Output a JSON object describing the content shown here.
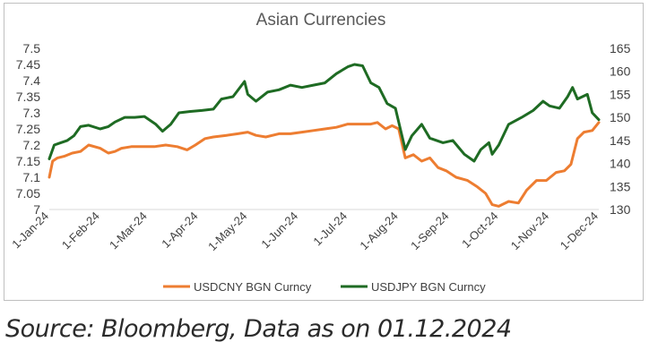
{
  "source_note": "Source: Bloomberg, Data as on 01.12.2024",
  "colors": {
    "usdcny": "#ed7d31",
    "usdjpy": "#1e6b23",
    "axis_text": "#404040",
    "title": "#595959",
    "frame": "#bfbfbf"
  },
  "chart_data": {
    "type": "line",
    "title": "Asian Currencies",
    "xlabel": "",
    "ylabel": "",
    "x_tick_labels": [
      "1-Jan-24",
      "1-Feb-24",
      "1-Mar-24",
      "1-Apr-24",
      "1-May-24",
      "1-Jun-24",
      "1-Jul-24",
      "1-Aug-24",
      "1-Sep-24",
      "1-Oct-24",
      "1-Nov-24",
      "1-Dec-24"
    ],
    "x_range": [
      "2024-01-01",
      "2024-12-01"
    ],
    "y_left": {
      "min": 7.0,
      "max": 7.5,
      "ticks": [
        "7",
        "7.05",
        "7.1",
        "7.15",
        "7.2",
        "7.25",
        "7.3",
        "7.35",
        "7.4",
        "7.45",
        "7.5"
      ]
    },
    "y_right": {
      "min": 130,
      "max": 165,
      "ticks": [
        "130",
        "135",
        "140",
        "145",
        "150",
        "155",
        "160",
        "165"
      ]
    },
    "grid": false,
    "legend_position": "bottom",
    "series": [
      {
        "name": "USDCNY BGN Curncy",
        "axis": "left",
        "points": [
          [
            "2024-01-01",
            7.1
          ],
          [
            "2024-01-03",
            7.15
          ],
          [
            "2024-01-06",
            7.16
          ],
          [
            "2024-01-10",
            7.165
          ],
          [
            "2024-01-15",
            7.175
          ],
          [
            "2024-01-20",
            7.18
          ],
          [
            "2024-01-25",
            7.2
          ],
          [
            "2024-02-01",
            7.19
          ],
          [
            "2024-02-06",
            7.175
          ],
          [
            "2024-02-10",
            7.18
          ],
          [
            "2024-02-14",
            7.19
          ],
          [
            "2024-02-20",
            7.195
          ],
          [
            "2024-02-27",
            7.195
          ],
          [
            "2024-03-05",
            7.195
          ],
          [
            "2024-03-12",
            7.2
          ],
          [
            "2024-03-19",
            7.195
          ],
          [
            "2024-03-25",
            7.185
          ],
          [
            "2024-03-30",
            7.2
          ],
          [
            "2024-04-05",
            7.22
          ],
          [
            "2024-04-10",
            7.225
          ],
          [
            "2024-04-18",
            7.23
          ],
          [
            "2024-04-25",
            7.235
          ],
          [
            "2024-05-01",
            7.24
          ],
          [
            "2024-05-06",
            7.23
          ],
          [
            "2024-05-12",
            7.225
          ],
          [
            "2024-05-20",
            7.235
          ],
          [
            "2024-05-27",
            7.235
          ],
          [
            "2024-06-03",
            7.24
          ],
          [
            "2024-06-10",
            7.245
          ],
          [
            "2024-06-17",
            7.25
          ],
          [
            "2024-06-24",
            7.255
          ],
          [
            "2024-07-01",
            7.265
          ],
          [
            "2024-07-08",
            7.265
          ],
          [
            "2024-07-15",
            7.265
          ],
          [
            "2024-07-19",
            7.27
          ],
          [
            "2024-07-24",
            7.25
          ],
          [
            "2024-07-28",
            7.26
          ],
          [
            "2024-08-01",
            7.25
          ],
          [
            "2024-08-05",
            7.16
          ],
          [
            "2024-08-10",
            7.17
          ],
          [
            "2024-08-15",
            7.15
          ],
          [
            "2024-08-20",
            7.16
          ],
          [
            "2024-08-25",
            7.13
          ],
          [
            "2024-08-30",
            7.12
          ],
          [
            "2024-09-05",
            7.1
          ],
          [
            "2024-09-12",
            7.09
          ],
          [
            "2024-09-18",
            7.07
          ],
          [
            "2024-09-23",
            7.05
          ],
          [
            "2024-09-27",
            7.015
          ],
          [
            "2024-10-01",
            7.01
          ],
          [
            "2024-10-07",
            7.025
          ],
          [
            "2024-10-13",
            7.02
          ],
          [
            "2024-10-18",
            7.06
          ],
          [
            "2024-10-24",
            7.09
          ],
          [
            "2024-10-30",
            7.09
          ],
          [
            "2024-11-05",
            7.115
          ],
          [
            "2024-11-10",
            7.12
          ],
          [
            "2024-11-14",
            7.14
          ],
          [
            "2024-11-18",
            7.22
          ],
          [
            "2024-11-22",
            7.24
          ],
          [
            "2024-11-27",
            7.245
          ],
          [
            "2024-12-01",
            7.27
          ]
        ]
      },
      {
        "name": "USDJPY BGN Curncy",
        "axis": "right",
        "points": [
          [
            "2024-01-01",
            141
          ],
          [
            "2024-01-04",
            144
          ],
          [
            "2024-01-08",
            144.5
          ],
          [
            "2024-01-12",
            145
          ],
          [
            "2024-01-16",
            146
          ],
          [
            "2024-01-20",
            148
          ],
          [
            "2024-01-25",
            148.3
          ],
          [
            "2024-02-01",
            147.5
          ],
          [
            "2024-02-06",
            148
          ],
          [
            "2024-02-10",
            149
          ],
          [
            "2024-02-16",
            150
          ],
          [
            "2024-02-22",
            150
          ],
          [
            "2024-02-28",
            150.2
          ],
          [
            "2024-03-06",
            148.5
          ],
          [
            "2024-03-10",
            147
          ],
          [
            "2024-03-15",
            148.5
          ],
          [
            "2024-03-20",
            151
          ],
          [
            "2024-03-27",
            151.3
          ],
          [
            "2024-04-03",
            151.5
          ],
          [
            "2024-04-10",
            151.8
          ],
          [
            "2024-04-15",
            154
          ],
          [
            "2024-04-22",
            154.5
          ],
          [
            "2024-04-29",
            157.8
          ],
          [
            "2024-05-01",
            155
          ],
          [
            "2024-05-06",
            153.5
          ],
          [
            "2024-05-13",
            155.5
          ],
          [
            "2024-05-20",
            156
          ],
          [
            "2024-05-27",
            157
          ],
          [
            "2024-06-03",
            156.5
          ],
          [
            "2024-06-10",
            157
          ],
          [
            "2024-06-17",
            157.5
          ],
          [
            "2024-06-24",
            159.5
          ],
          [
            "2024-07-01",
            161
          ],
          [
            "2024-07-05",
            161.5
          ],
          [
            "2024-07-10",
            161.2
          ],
          [
            "2024-07-15",
            157.5
          ],
          [
            "2024-07-20",
            156.5
          ],
          [
            "2024-07-25",
            153
          ],
          [
            "2024-07-30",
            152
          ],
          [
            "2024-08-05",
            143
          ],
          [
            "2024-08-09",
            146
          ],
          [
            "2024-08-15",
            148.5
          ],
          [
            "2024-08-20",
            145.5
          ],
          [
            "2024-08-28",
            144.5
          ],
          [
            "2024-09-03",
            145
          ],
          [
            "2024-09-10",
            142
          ],
          [
            "2024-09-16",
            140.5
          ],
          [
            "2024-09-20",
            143
          ],
          [
            "2024-09-25",
            144.5
          ],
          [
            "2024-09-27",
            142
          ],
          [
            "2024-10-01",
            144
          ],
          [
            "2024-10-07",
            148.5
          ],
          [
            "2024-10-15",
            150
          ],
          [
            "2024-10-22",
            151.5
          ],
          [
            "2024-10-28",
            153.5
          ],
          [
            "2024-11-01",
            152.5
          ],
          [
            "2024-11-07",
            152
          ],
          [
            "2024-11-12",
            154.5
          ],
          [
            "2024-11-15",
            156.5
          ],
          [
            "2024-11-18",
            154
          ],
          [
            "2024-11-24",
            155
          ],
          [
            "2024-11-27",
            151
          ],
          [
            "2024-12-01",
            149.5
          ]
        ]
      }
    ]
  }
}
